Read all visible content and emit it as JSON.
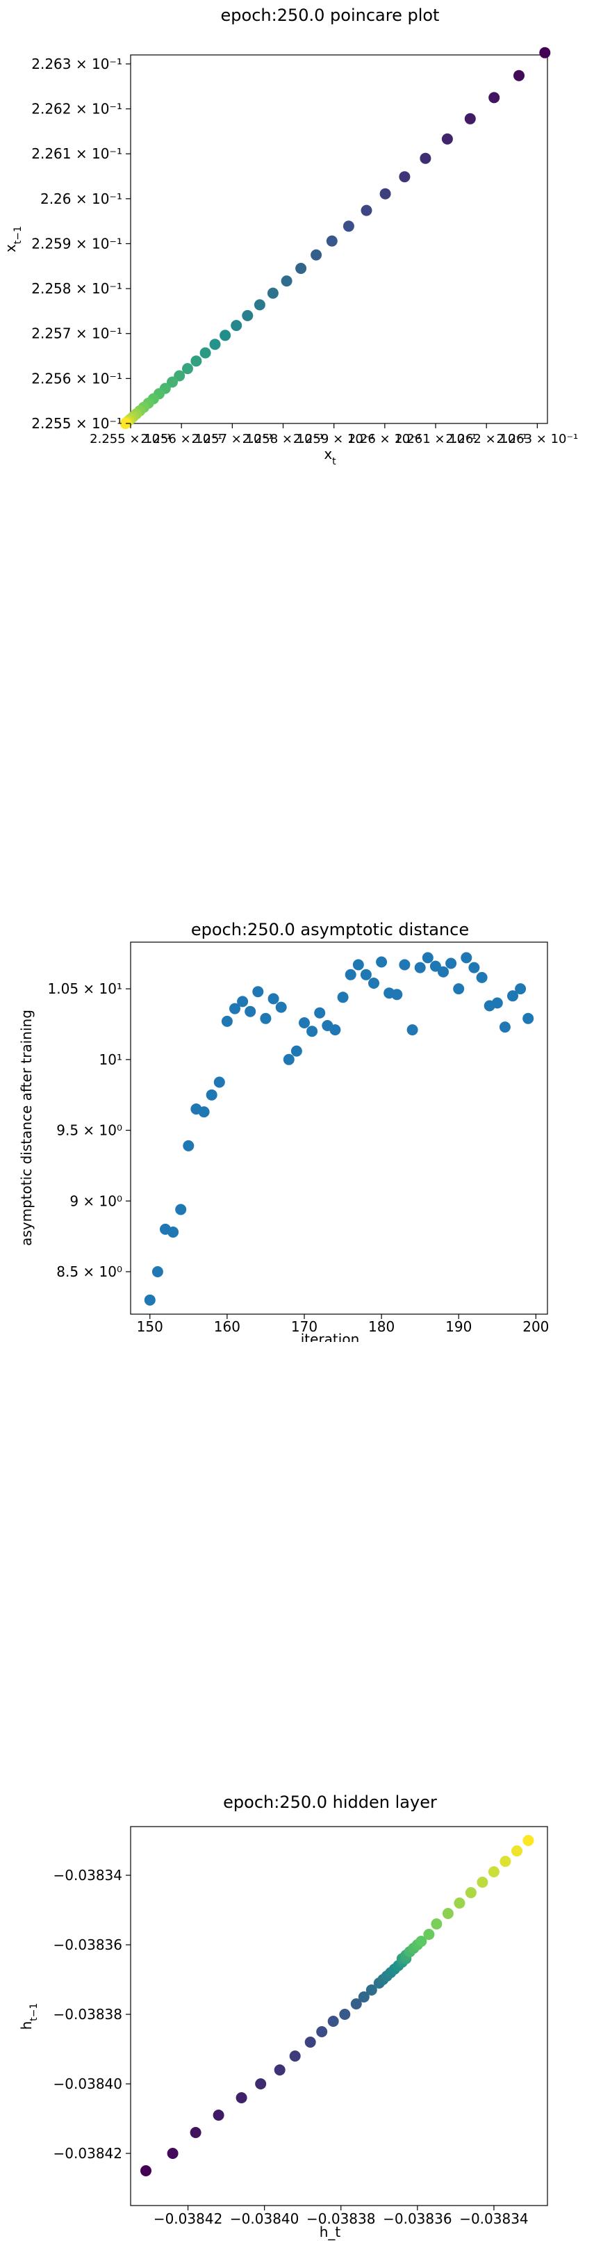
{
  "chart_data": [
    {
      "id": "poincare",
      "type": "scatter",
      "title": "epoch:250.0 poincare plot",
      "xlabel": "x_t",
      "ylabel": "x_{t-1}",
      "xlim": [
        0.2255,
        0.22632
      ],
      "ylim": [
        0.2255,
        0.22632
      ],
      "x_ticks": [
        {
          "value": 0.2255,
          "label": "2.255 × 10⁻¹"
        },
        {
          "value": 0.2256,
          "label": "2.256 × 10⁻¹"
        },
        {
          "value": 0.2257,
          "label": "2.257 × 10⁻¹"
        },
        {
          "value": 0.2258,
          "label": "2.258 × 10⁻¹"
        },
        {
          "value": 0.2259,
          "label": "2.259 × 10⁻¹"
        },
        {
          "value": 0.226,
          "label": "2.26 × 10⁻¹"
        },
        {
          "value": 0.2261,
          "label": "2.261 × 10⁻¹"
        },
        {
          "value": 0.2262,
          "label": "2.262 × 10⁻¹"
        },
        {
          "value": 0.2263,
          "label": "2.263 × 10⁻¹"
        }
      ],
      "y_ticks": [
        {
          "value": 0.2255,
          "label": "2.255 × 10⁻¹"
        },
        {
          "value": 0.2256,
          "label": "2.256 × 10⁻¹"
        },
        {
          "value": 0.2257,
          "label": "2.257 × 10⁻¹"
        },
        {
          "value": 0.2258,
          "label": "2.258 × 10⁻¹"
        },
        {
          "value": 0.2259,
          "label": "2.259 × 10⁻¹"
        },
        {
          "value": 0.226,
          "label": "2.26 × 10⁻¹"
        },
        {
          "value": 0.2261,
          "label": "2.261 × 10⁻¹"
        },
        {
          "value": 0.2262,
          "label": "2.262 × 10⁻¹"
        },
        {
          "value": 0.2263,
          "label": "2.263 × 10⁻¹"
        }
      ],
      "colormap": [
        "#440154",
        "#3b528b",
        "#21918c",
        "#5ec962",
        "#fde725"
      ],
      "x": [
        0.226315,
        0.226264,
        0.226215,
        0.226168,
        0.226123,
        0.22608,
        0.226039,
        0.226001,
        0.225964,
        0.225929,
        0.225896,
        0.225865,
        0.225835,
        0.225807,
        0.22578,
        0.225754,
        0.22573,
        0.225708,
        0.225686,
        0.225666,
        0.225647,
        0.225629,
        0.225612,
        0.225596,
        0.225582,
        0.225568,
        0.225556,
        0.225545,
        0.225535,
        0.225526,
        0.225518,
        0.225511,
        0.225505,
        0.2255,
        0.225496,
        0.225493,
        0.225491,
        0.22549
      ],
      "y": [
        0.226325,
        0.226274,
        0.226225,
        0.226178,
        0.226133,
        0.22609,
        0.226049,
        0.226011,
        0.225974,
        0.225939,
        0.225906,
        0.225875,
        0.225845,
        0.225817,
        0.22579,
        0.225764,
        0.22574,
        0.225718,
        0.225696,
        0.225676,
        0.225657,
        0.225639,
        0.225622,
        0.225606,
        0.225592,
        0.225578,
        0.225566,
        0.225555,
        0.225545,
        0.225536,
        0.225528,
        0.225521,
        0.225515,
        0.22551,
        0.225506,
        0.225503,
        0.225501,
        0.2255
      ]
    },
    {
      "id": "asymptotic",
      "type": "scatter",
      "title": "epoch:250.0 asymptotic distance",
      "xlabel": "iteration",
      "ylabel": "asymptotic distance after training",
      "xlim": [
        147.5,
        201.5
      ],
      "ylim": [
        8.2,
        10.83
      ],
      "point_color": "#1f77b4",
      "x_ticks": [
        {
          "value": 150,
          "label": "150"
        },
        {
          "value": 160,
          "label": "160"
        },
        {
          "value": 170,
          "label": "170"
        },
        {
          "value": 180,
          "label": "180"
        },
        {
          "value": 190,
          "label": "190"
        },
        {
          "value": 200,
          "label": "200"
        }
      ],
      "y_ticks": [
        {
          "value": 8.5,
          "label": "8.5 × 10⁰"
        },
        {
          "value": 9.0,
          "label": "9 × 10⁰"
        },
        {
          "value": 9.5,
          "label": "9.5 × 10⁰"
        },
        {
          "value": 10.0,
          "label": "10¹"
        },
        {
          "value": 10.5,
          "label": "1.05 × 10¹"
        }
      ],
      "x": [
        150,
        151,
        152,
        153,
        154,
        155,
        156,
        157,
        158,
        159,
        160,
        161,
        162,
        163,
        164,
        165,
        166,
        167,
        168,
        169,
        170,
        171,
        172,
        173,
        174,
        175,
        176,
        177,
        178,
        179,
        180,
        181,
        182,
        183,
        184,
        185,
        186,
        187,
        188,
        189,
        190,
        191,
        192,
        193,
        194,
        195,
        196,
        197,
        198,
        199
      ],
      "y": [
        8.3,
        8.5,
        8.8,
        8.78,
        8.94,
        9.39,
        9.65,
        9.63,
        9.75,
        9.84,
        10.27,
        10.36,
        10.41,
        10.34,
        10.48,
        10.29,
        10.43,
        10.37,
        10.0,
        10.06,
        10.26,
        10.2,
        10.33,
        10.24,
        10.21,
        10.44,
        10.6,
        10.67,
        10.6,
        10.54,
        10.69,
        10.47,
        10.46,
        10.67,
        10.21,
        10.65,
        10.72,
        10.66,
        10.62,
        10.68,
        10.5,
        10.72,
        10.65,
        10.58,
        10.38,
        10.4,
        10.23,
        10.45,
        10.5,
        10.29
      ]
    },
    {
      "id": "hidden",
      "type": "scatter",
      "title": "epoch:250.0 hidden layer",
      "xlabel": "h_t",
      "ylabel": "h_{t-1}",
      "xlim": [
        -0.038435,
        -0.038326
      ],
      "ylim": [
        -0.038435,
        -0.038326
      ],
      "x_ticks": [
        {
          "value": -0.03842,
          "label": "−0.03842"
        },
        {
          "value": -0.0384,
          "label": "−0.03840"
        },
        {
          "value": -0.03838,
          "label": "−0.03838"
        },
        {
          "value": -0.03836,
          "label": "−0.03836"
        },
        {
          "value": -0.03834,
          "label": "−0.03834"
        }
      ],
      "y_ticks": [
        {
          "value": -0.03842,
          "label": "−0.03842"
        },
        {
          "value": -0.0384,
          "label": "−0.03840"
        },
        {
          "value": -0.03838,
          "label": "−0.03838"
        },
        {
          "value": -0.03836,
          "label": "−0.03836"
        },
        {
          "value": -0.03834,
          "label": "−0.03834"
        }
      ],
      "colormap": [
        "#440154",
        "#3b528b",
        "#21918c",
        "#5ec962",
        "#fde725"
      ],
      "x": [
        -0.038431,
        -0.038424,
        -0.038418,
        -0.038412,
        -0.038406,
        -0.038401,
        -0.038396,
        -0.038392,
        -0.038388,
        -0.038385,
        -0.038382,
        -0.038379,
        -0.038376,
        -0.038374,
        -0.038372,
        -0.03837,
        -0.038369,
        -0.038368,
        -0.038367,
        -0.038366,
        -0.038365,
        -0.038364,
        -0.038364,
        -0.038363,
        -0.038363,
        -0.038362,
        -0.038362,
        -0.038361,
        -0.03836,
        -0.038359,
        -0.038357,
        -0.038355,
        -0.038352,
        -0.038349,
        -0.038346,
        -0.038343,
        -0.03834,
        -0.038337,
        -0.038334,
        -0.038331
      ],
      "y": [
        -0.038425,
        -0.03842,
        -0.038414,
        -0.038409,
        -0.038404,
        -0.0384,
        -0.038396,
        -0.038392,
        -0.038388,
        -0.038385,
        -0.038382,
        -0.03838,
        -0.038377,
        -0.038375,
        -0.038373,
        -0.038371,
        -0.03837,
        -0.038369,
        -0.038368,
        -0.038367,
        -0.038366,
        -0.038365,
        -0.038364,
        -0.038364,
        -0.038363,
        -0.038362,
        -0.038362,
        -0.038361,
        -0.03836,
        -0.038359,
        -0.038357,
        -0.038354,
        -0.038351,
        -0.038348,
        -0.038345,
        -0.038342,
        -0.038339,
        -0.038336,
        -0.038333,
        -0.03833
      ]
    }
  ]
}
